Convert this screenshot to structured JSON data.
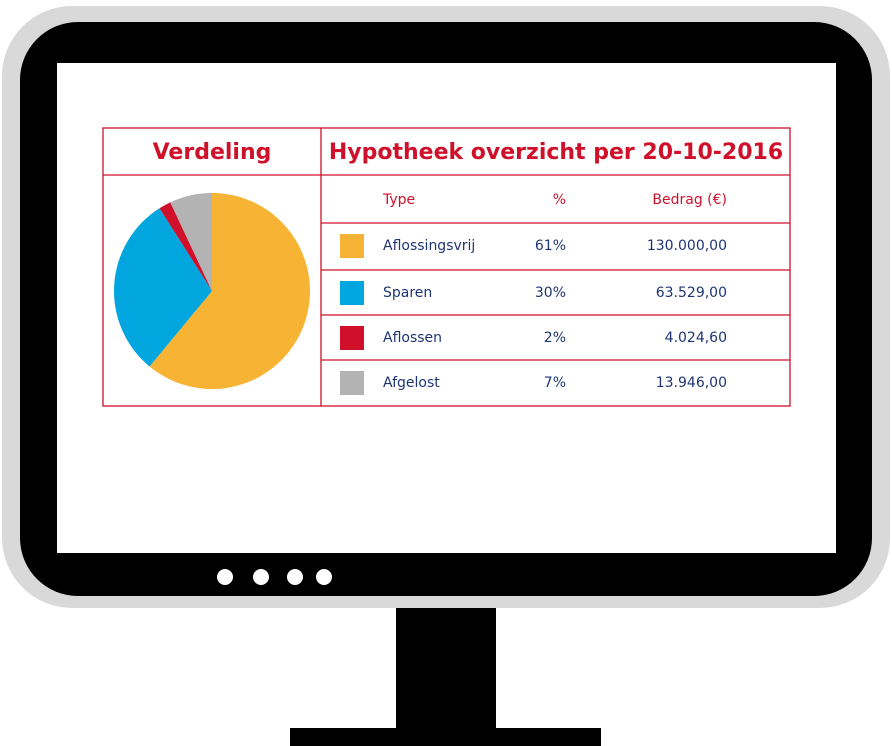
{
  "left_title": "Verdeling",
  "chart_data": {
    "type": "pie",
    "categories": [
      "Aflossingsvrij",
      "Sparen",
      "Aflossen",
      "Afgelost"
    ],
    "values": [
      61,
      30,
      2,
      7
    ],
    "value_labels": [
      "61%",
      "30%",
      "2%",
      "7%"
    ],
    "colors": [
      "#f7b334",
      "#00a6dd",
      "#d0102b",
      "#b3b3b3"
    ]
  },
  "table": {
    "title": "Hypotheek overzicht per 20-10-2016",
    "header": [
      "Type",
      "%",
      "Bedrag (€)"
    ],
    "amounts": [
      "130.000,00",
      "63.529,00",
      "4.024,60",
      "13.946,00"
    ]
  }
}
